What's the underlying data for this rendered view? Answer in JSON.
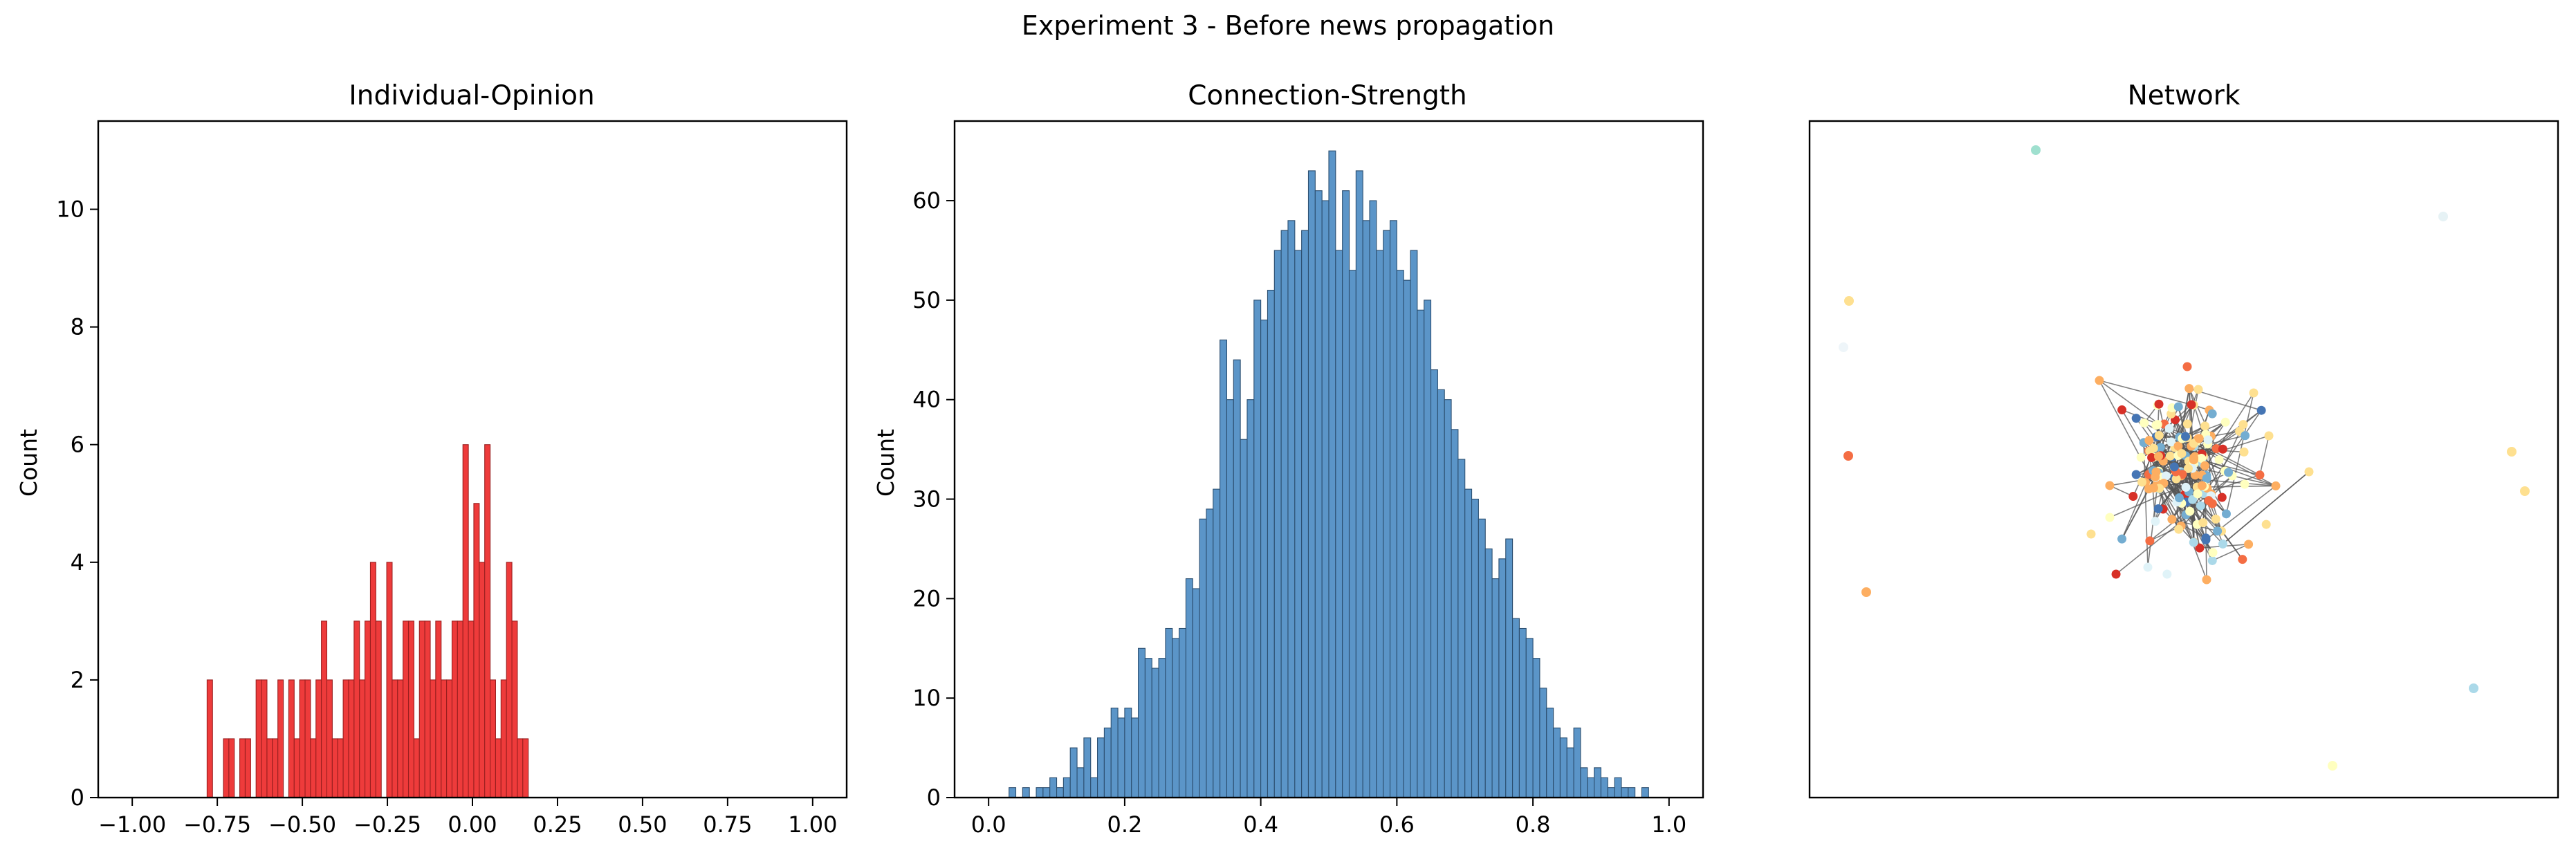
{
  "figure": {
    "suptitle": "Experiment 3 - Before news propagation"
  },
  "chart_data": [
    {
      "type": "bar",
      "title": "Individual-Opinion",
      "xlabel": "",
      "ylabel": "Count",
      "xlim": [
        -1.1,
        1.1
      ],
      "ylim": [
        0,
        11.5
      ],
      "xticks": [
        -1.0,
        -0.75,
        -0.5,
        -0.25,
        0.0,
        0.25,
        0.5,
        0.75,
        1.0
      ],
      "xtick_labels": [
        "−1.00",
        "−0.75",
        "−0.50",
        "−0.25",
        "0.00",
        "0.25",
        "0.50",
        "0.75",
        "1.00"
      ],
      "yticks": [
        0,
        2,
        4,
        6,
        8,
        10
      ],
      "ytick_labels": [
        "0",
        "2",
        "4",
        "6",
        "8",
        "10"
      ],
      "bin_start": -0.78,
      "bin_width": 0.016,
      "values": [
        2,
        0,
        0,
        1,
        1,
        0,
        1,
        1,
        0,
        2,
        2,
        1,
        1,
        2,
        0,
        2,
        1,
        2,
        2,
        1,
        2,
        3,
        2,
        1,
        1,
        2,
        2,
        3,
        2,
        3,
        4,
        3,
        0,
        4,
        2,
        2,
        3,
        3,
        1,
        3,
        3,
        2,
        3,
        2,
        2,
        3,
        3,
        6,
        3,
        5,
        4,
        6,
        2,
        1,
        2,
        4,
        3,
        1,
        1
      ],
      "bar_color": "#ee3b3b",
      "edge_color": "#9a1f1f"
    },
    {
      "type": "bar",
      "title": "Connection-Strength",
      "xlabel": "",
      "ylabel": "Count",
      "xlim": [
        -0.05,
        1.05
      ],
      "ylim": [
        0,
        68
      ],
      "xticks": [
        0.0,
        0.2,
        0.4,
        0.6,
        0.8,
        1.0
      ],
      "xtick_labels": [
        "0.0",
        "0.2",
        "0.4",
        "0.6",
        "0.8",
        "1.0"
      ],
      "yticks": [
        0,
        10,
        20,
        30,
        40,
        50,
        60
      ],
      "ytick_labels": [
        "0",
        "10",
        "20",
        "30",
        "40",
        "50",
        "60"
      ],
      "bin_start": 0.03,
      "bin_width": 0.01,
      "values": [
        1,
        0,
        1,
        0,
        1,
        1,
        2,
        1,
        2,
        5,
        3,
        6,
        2,
        6,
        7,
        9,
        8,
        9,
        8,
        15,
        14,
        13,
        14,
        17,
        16,
        17,
        22,
        21,
        28,
        29,
        31,
        46,
        40,
        44,
        36,
        40,
        50,
        48,
        51,
        55,
        57,
        58,
        55,
        57,
        63,
        61,
        60,
        65,
        55,
        61,
        53,
        63,
        58,
        60,
        55,
        57,
        58,
        53,
        52,
        55,
        49,
        50,
        43,
        41,
        40,
        37,
        34,
        31,
        30,
        28,
        25,
        22,
        24,
        26,
        18,
        17,
        16,
        14,
        11,
        9,
        7,
        6,
        5,
        7,
        3,
        2,
        3,
        2,
        1,
        2,
        1,
        1,
        0,
        1
      ],
      "bar_color": "#5b95c8",
      "edge_color": "#2c4f70"
    },
    {
      "type": "scatter",
      "title": "Network",
      "axis_ticks": "hidden"
    }
  ]
}
